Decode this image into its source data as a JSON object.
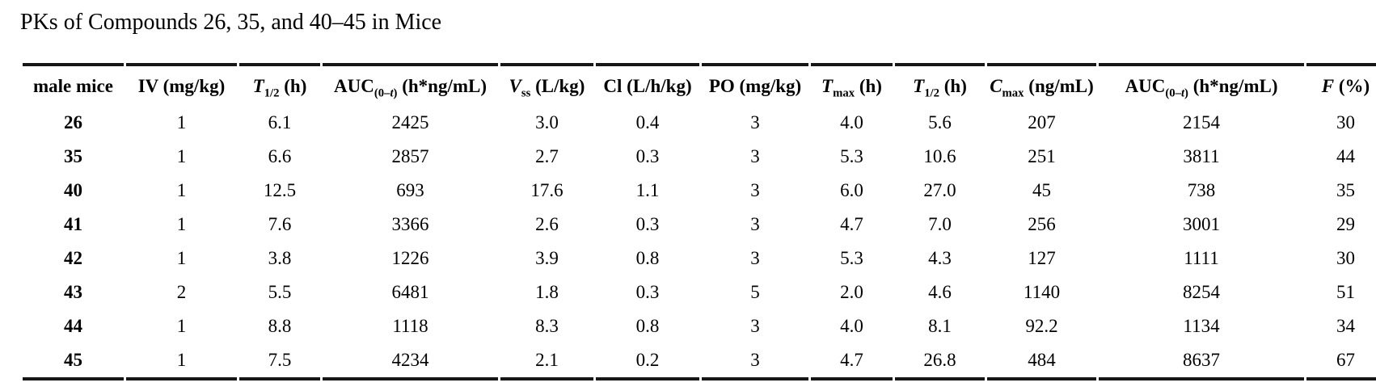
{
  "title": "PKs of Compounds 26, 35, and 40–45 in Mice",
  "colors": {
    "ink": "#000000",
    "background": "#ffffff",
    "rule": "#161616"
  },
  "table": {
    "columns": [
      {
        "id": "compound",
        "label_text": "male mice",
        "label_parts": [
          {
            "t": "male mice"
          }
        ]
      },
      {
        "id": "iv_dose",
        "label_text": "IV (mg/kg)",
        "label_parts": [
          {
            "t": "IV (mg/kg)"
          }
        ]
      },
      {
        "id": "iv_t_half",
        "label_text": "T1/2 (h)",
        "label_parts": [
          {
            "t": "T",
            "i": true
          },
          {
            "t": "1/2",
            "sub": true
          },
          {
            "t": " (h)"
          }
        ]
      },
      {
        "id": "iv_auc",
        "label_text": "AUC(0–t) (h*ng/mL)",
        "label_parts": [
          {
            "t": "AUC"
          },
          {
            "t": "(0–",
            "sub": true
          },
          {
            "t": "t",
            "sub": true,
            "i": true
          },
          {
            "t": ")",
            "sub": true
          },
          {
            "t": " (h*ng/mL)"
          }
        ]
      },
      {
        "id": "vss",
        "label_text": "Vss (L/kg)",
        "label_parts": [
          {
            "t": "V",
            "i": true
          },
          {
            "t": "ss",
            "sub": true
          },
          {
            "t": " (L/kg)"
          }
        ]
      },
      {
        "id": "cl",
        "label_text": "Cl (L/h/kg)",
        "label_parts": [
          {
            "t": "Cl (L/h/kg)"
          }
        ]
      },
      {
        "id": "po_dose",
        "label_text": "PO (mg/kg)",
        "label_parts": [
          {
            "t": "PO (mg/kg)"
          }
        ]
      },
      {
        "id": "po_tmax",
        "label_text": "Tmax (h)",
        "label_parts": [
          {
            "t": "T",
            "i": true
          },
          {
            "t": "max",
            "sub": true
          },
          {
            "t": " (h)"
          }
        ]
      },
      {
        "id": "po_t_half",
        "label_text": "T1/2 (h)",
        "label_parts": [
          {
            "t": "T",
            "i": true
          },
          {
            "t": "1/2",
            "sub": true
          },
          {
            "t": " (h)"
          }
        ]
      },
      {
        "id": "po_cmax",
        "label_text": "Cmax (ng/mL)",
        "label_parts": [
          {
            "t": "C",
            "i": true
          },
          {
            "t": "max",
            "sub": true
          },
          {
            "t": " (ng/mL)"
          }
        ]
      },
      {
        "id": "po_auc",
        "label_text": "AUC(0–t) (h*ng/mL)",
        "label_parts": [
          {
            "t": "AUC"
          },
          {
            "t": "(0–",
            "sub": true
          },
          {
            "t": "t",
            "sub": true,
            "i": true
          },
          {
            "t": ")",
            "sub": true
          },
          {
            "t": " (h*ng/mL)"
          }
        ]
      },
      {
        "id": "f_percent",
        "label_text": "F (%)",
        "label_parts": [
          {
            "t": "F",
            "i": true
          },
          {
            "t": " (%)"
          }
        ]
      }
    ],
    "rows": [
      [
        "26",
        "1",
        "6.1",
        "2425",
        "3.0",
        "0.4",
        "3",
        "4.0",
        "5.6",
        "207",
        "2154",
        "30"
      ],
      [
        "35",
        "1",
        "6.6",
        "2857",
        "2.7",
        "0.3",
        "3",
        "5.3",
        "10.6",
        "251",
        "3811",
        "44"
      ],
      [
        "40",
        "1",
        "12.5",
        "693",
        "17.6",
        "1.1",
        "3",
        "6.0",
        "27.0",
        "45",
        "738",
        "35"
      ],
      [
        "41",
        "1",
        "7.6",
        "3366",
        "2.6",
        "0.3",
        "3",
        "4.7",
        "7.0",
        "256",
        "3001",
        "29"
      ],
      [
        "42",
        "1",
        "3.8",
        "1226",
        "3.9",
        "0.8",
        "3",
        "5.3",
        "4.3",
        "127",
        "1111",
        "30"
      ],
      [
        "43",
        "2",
        "5.5",
        "6481",
        "1.8",
        "0.3",
        "5",
        "2.0",
        "4.6",
        "1140",
        "8254",
        "51"
      ],
      [
        "44",
        "1",
        "8.8",
        "1118",
        "8.3",
        "0.8",
        "3",
        "4.0",
        "8.1",
        "92.2",
        "1134",
        "34"
      ],
      [
        "45",
        "1",
        "7.5",
        "4234",
        "2.1",
        "0.2",
        "3",
        "4.7",
        "26.8",
        "484",
        "8637",
        "67"
      ]
    ]
  }
}
